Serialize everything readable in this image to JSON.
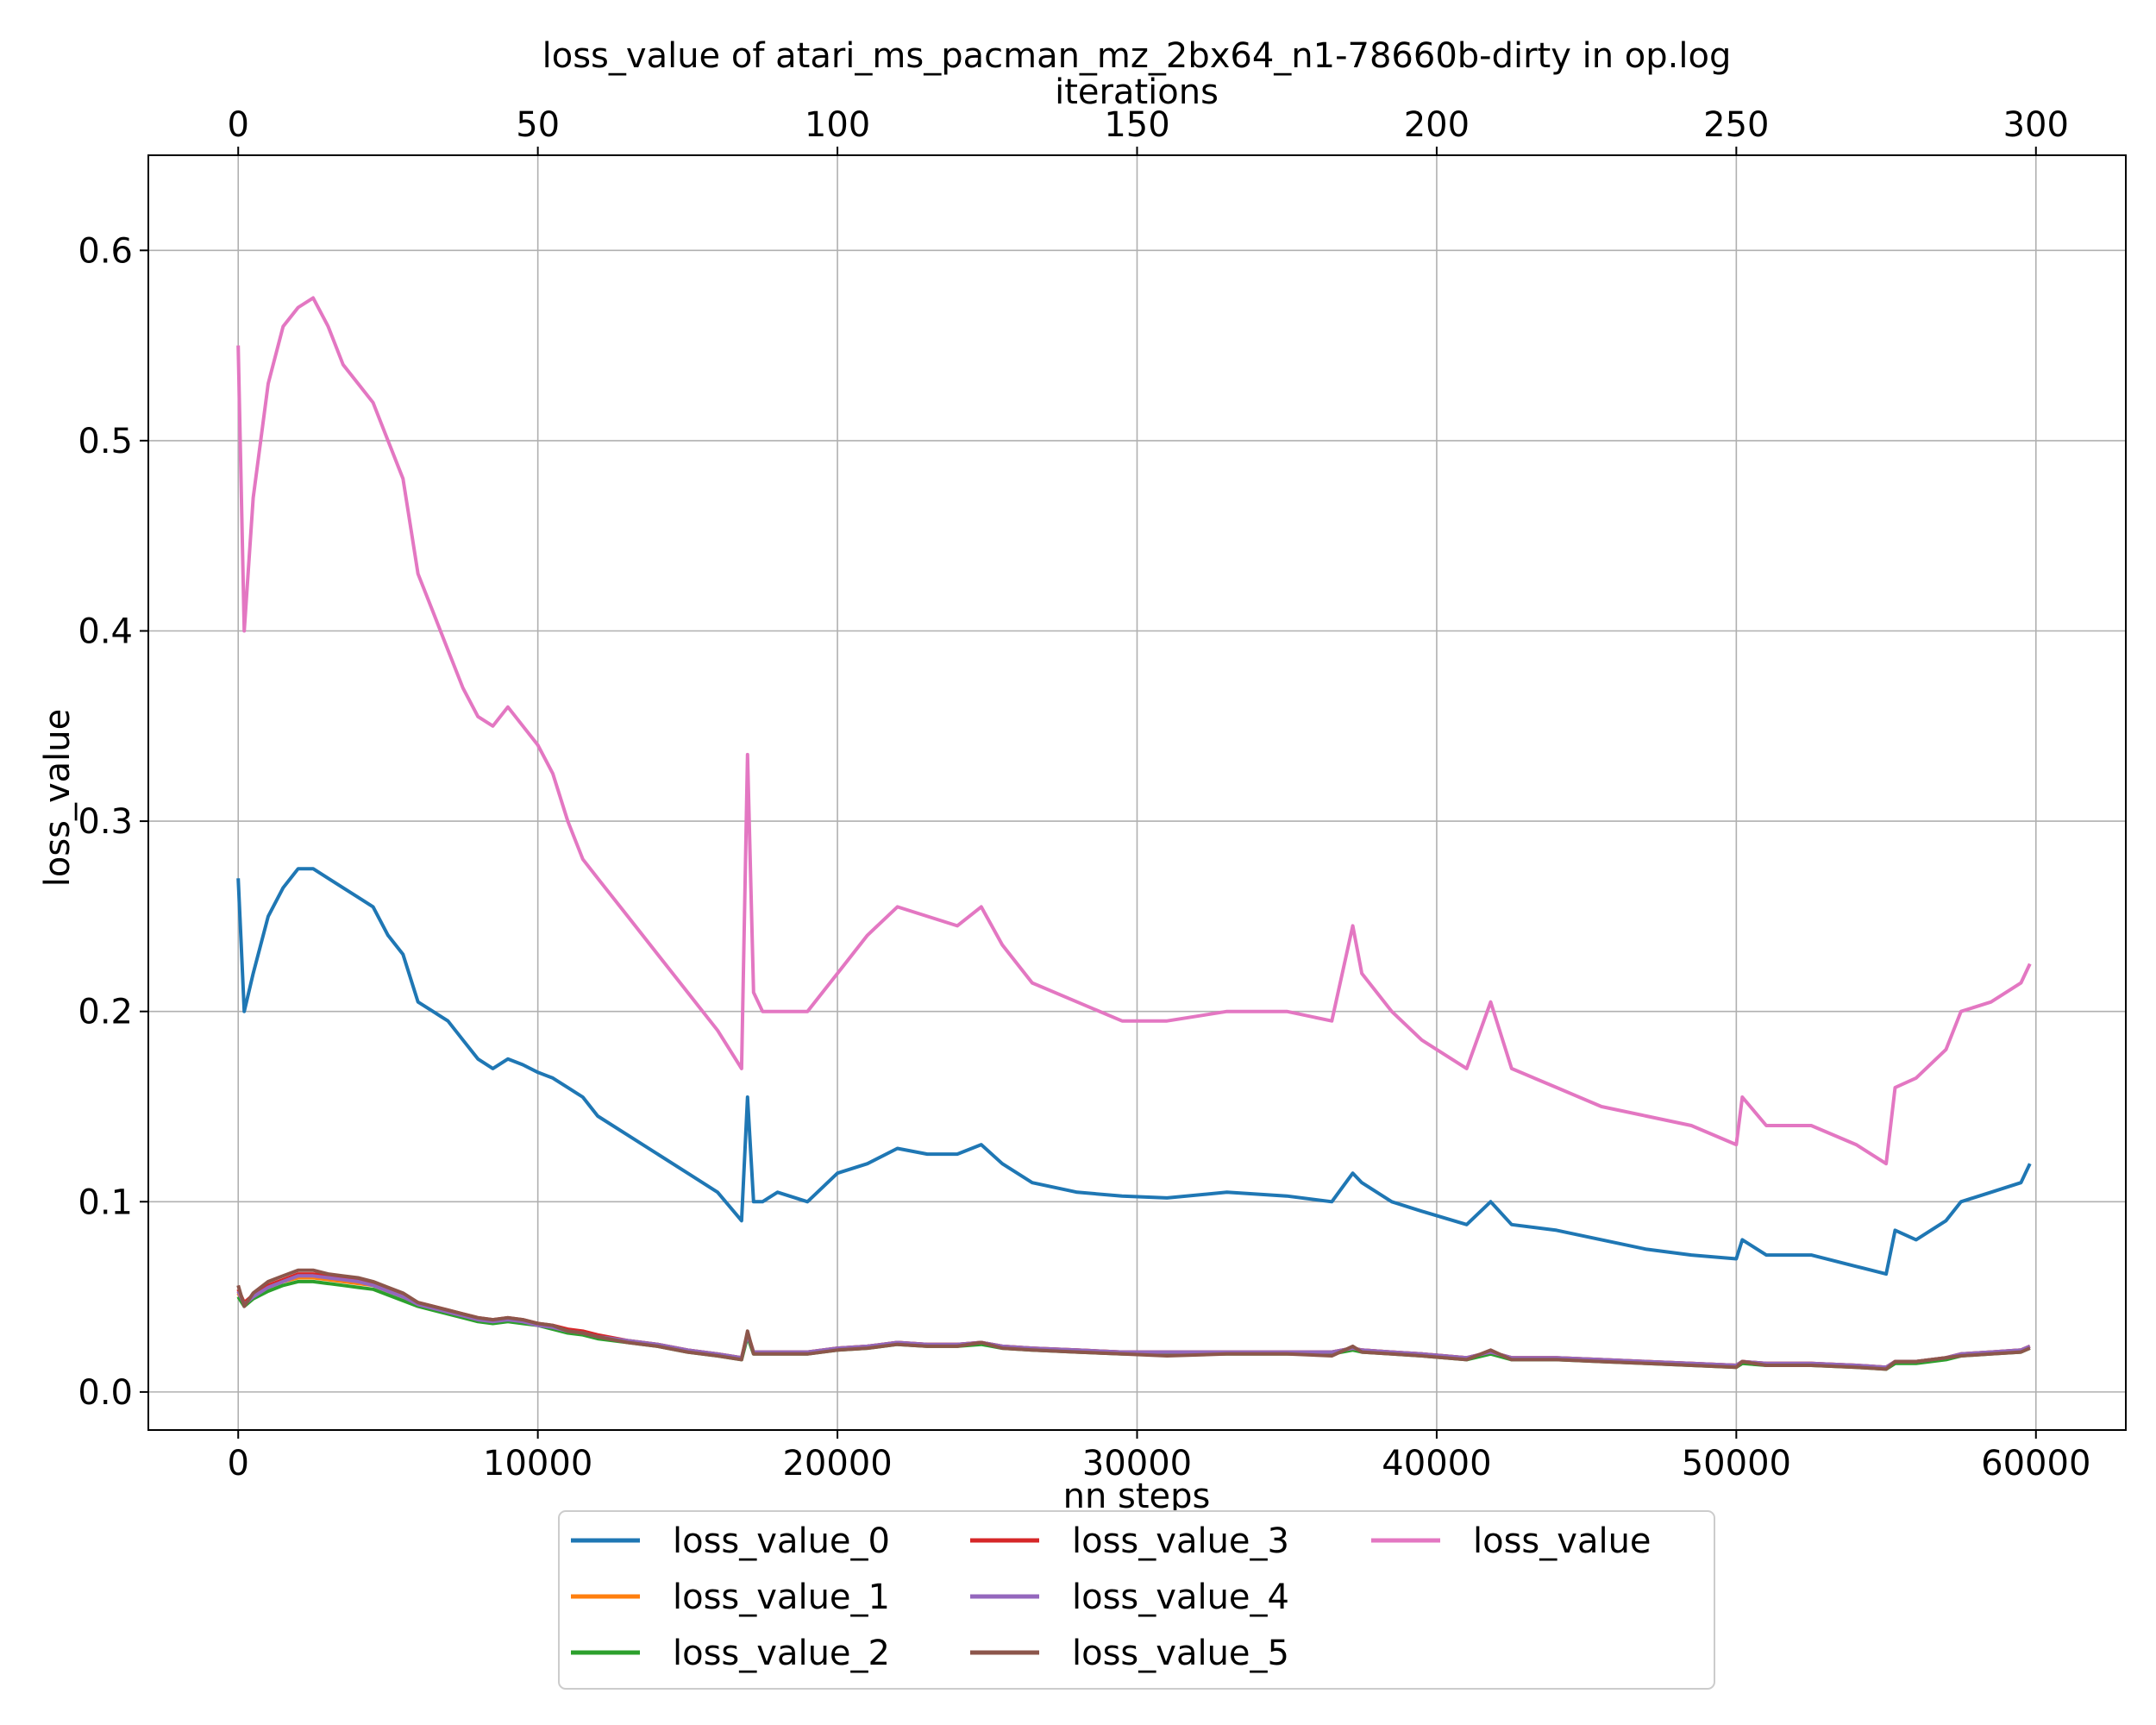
{
  "chart_data": {
    "type": "line",
    "title": "loss_value of atari_ms_pacman_mz_2bx64_n1-78660b-dirty in op.log",
    "xlabel": "nn steps",
    "x2label": "iterations",
    "ylabel": "loss_value",
    "xlim": [
      -3000,
      63000
    ],
    "x2lim": [
      -15,
      315
    ],
    "ylim": [
      -0.02,
      0.65
    ],
    "xticks": [
      0,
      10000,
      20000,
      30000,
      40000,
      50000,
      60000
    ],
    "x2ticks": [
      0,
      50,
      100,
      150,
      200,
      250,
      300
    ],
    "yticks": [
      0.0,
      0.1,
      0.2,
      0.3,
      0.4,
      0.5,
      0.6
    ],
    "grid": true,
    "legend_position": "below",
    "x": [
      0,
      200,
      500,
      1000,
      1500,
      2000,
      2500,
      3000,
      3500,
      4000,
      4500,
      5000,
      5500,
      6000,
      6500,
      7000,
      7500,
      8000,
      8500,
      9000,
      9500,
      10000,
      10500,
      11000,
      11500,
      12000,
      13000,
      14000,
      15000,
      16000,
      16800,
      17000,
      17200,
      17500,
      18000,
      19000,
      20000,
      21000,
      22000,
      23000,
      24000,
      24800,
      25500,
      26500,
      28000,
      29500,
      31000,
      33000,
      35000,
      36500,
      37200,
      37500,
      38500,
      39500,
      41000,
      41800,
      42500,
      44000,
      45500,
      47000,
      48500,
      50000,
      50200,
      51000,
      52500,
      54000,
      55000,
      55300,
      56000,
      57000,
      57500,
      58500,
      59500,
      59800
    ],
    "series": [
      {
        "name": "loss_value_0",
        "color": "#1f77b4",
        "values": [
          0.27,
          0.2,
          0.22,
          0.25,
          0.265,
          0.275,
          0.275,
          0.27,
          0.265,
          0.26,
          0.255,
          0.24,
          0.23,
          0.205,
          0.2,
          0.195,
          0.185,
          0.175,
          0.17,
          0.175,
          0.172,
          0.168,
          0.165,
          0.16,
          0.155,
          0.145,
          0.135,
          0.125,
          0.115,
          0.105,
          0.09,
          0.155,
          0.1,
          0.1,
          0.105,
          0.1,
          0.115,
          0.12,
          0.128,
          0.125,
          0.125,
          0.13,
          0.12,
          0.11,
          0.105,
          0.103,
          0.102,
          0.105,
          0.103,
          0.1,
          0.115,
          0.11,
          0.1,
          0.095,
          0.088,
          0.1,
          0.088,
          0.085,
          0.08,
          0.075,
          0.072,
          0.07,
          0.08,
          0.072,
          0.072,
          0.066,
          0.062,
          0.085,
          0.08,
          0.09,
          0.1,
          0.105,
          0.11,
          0.12
        ]
      },
      {
        "name": "loss_value_1",
        "color": "#ff7f0e",
        "values": [
          0.052,
          0.046,
          0.05,
          0.055,
          0.058,
          0.06,
          0.06,
          0.059,
          0.058,
          0.057,
          0.056,
          0.053,
          0.05,
          0.046,
          0.044,
          0.042,
          0.04,
          0.038,
          0.037,
          0.038,
          0.037,
          0.036,
          0.034,
          0.032,
          0.031,
          0.029,
          0.027,
          0.025,
          0.022,
          0.02,
          0.018,
          0.03,
          0.021,
          0.021,
          0.021,
          0.021,
          0.023,
          0.024,
          0.026,
          0.025,
          0.025,
          0.026,
          0.024,
          0.023,
          0.022,
          0.021,
          0.021,
          0.021,
          0.021,
          0.021,
          0.023,
          0.022,
          0.021,
          0.02,
          0.018,
          0.021,
          0.018,
          0.018,
          0.017,
          0.016,
          0.015,
          0.014,
          0.016,
          0.015,
          0.015,
          0.014,
          0.013,
          0.016,
          0.016,
          0.018,
          0.02,
          0.021,
          0.022,
          0.024
        ]
      },
      {
        "name": "loss_value_2",
        "color": "#2ca02c",
        "values": [
          0.05,
          0.045,
          0.049,
          0.053,
          0.056,
          0.058,
          0.058,
          0.057,
          0.056,
          0.055,
          0.054,
          0.051,
          0.048,
          0.045,
          0.043,
          0.041,
          0.039,
          0.037,
          0.036,
          0.037,
          0.036,
          0.035,
          0.033,
          0.031,
          0.03,
          0.028,
          0.026,
          0.024,
          0.021,
          0.019,
          0.017,
          0.029,
          0.02,
          0.02,
          0.02,
          0.02,
          0.022,
          0.023,
          0.025,
          0.024,
          0.024,
          0.025,
          0.023,
          0.022,
          0.021,
          0.02,
          0.02,
          0.02,
          0.02,
          0.02,
          0.022,
          0.021,
          0.02,
          0.019,
          0.017,
          0.02,
          0.017,
          0.017,
          0.016,
          0.015,
          0.014,
          0.013,
          0.015,
          0.014,
          0.014,
          0.013,
          0.012,
          0.015,
          0.015,
          0.017,
          0.019,
          0.02,
          0.021,
          0.023
        ]
      },
      {
        "name": "loss_value_3",
        "color": "#d62728",
        "values": [
          0.054,
          0.047,
          0.051,
          0.056,
          0.059,
          0.062,
          0.062,
          0.061,
          0.06,
          0.059,
          0.057,
          0.054,
          0.051,
          0.047,
          0.045,
          0.043,
          0.041,
          0.039,
          0.038,
          0.039,
          0.038,
          0.036,
          0.035,
          0.033,
          0.032,
          0.03,
          0.027,
          0.025,
          0.022,
          0.02,
          0.018,
          0.031,
          0.021,
          0.021,
          0.021,
          0.021,
          0.023,
          0.024,
          0.026,
          0.025,
          0.025,
          0.026,
          0.024,
          0.023,
          0.022,
          0.021,
          0.021,
          0.021,
          0.021,
          0.021,
          0.023,
          0.022,
          0.021,
          0.02,
          0.018,
          0.021,
          0.018,
          0.018,
          0.017,
          0.016,
          0.015,
          0.014,
          0.016,
          0.015,
          0.015,
          0.014,
          0.013,
          0.016,
          0.016,
          0.018,
          0.02,
          0.021,
          0.022,
          0.024
        ]
      },
      {
        "name": "loss_value_4",
        "color": "#9467bd",
        "values": [
          0.053,
          0.046,
          0.05,
          0.055,
          0.058,
          0.061,
          0.061,
          0.06,
          0.059,
          0.058,
          0.056,
          0.053,
          0.05,
          0.046,
          0.044,
          0.042,
          0.04,
          0.038,
          0.037,
          0.038,
          0.037,
          0.035,
          0.034,
          0.032,
          0.031,
          0.029,
          0.027,
          0.025,
          0.022,
          0.02,
          0.018,
          0.03,
          0.021,
          0.021,
          0.021,
          0.021,
          0.023,
          0.024,
          0.026,
          0.025,
          0.025,
          0.026,
          0.024,
          0.023,
          0.022,
          0.021,
          0.021,
          0.021,
          0.021,
          0.021,
          0.023,
          0.022,
          0.021,
          0.02,
          0.018,
          0.021,
          0.018,
          0.018,
          0.017,
          0.016,
          0.015,
          0.014,
          0.016,
          0.015,
          0.015,
          0.014,
          0.013,
          0.016,
          0.016,
          0.018,
          0.02,
          0.021,
          0.022,
          0.024
        ]
      },
      {
        "name": "loss_value_5",
        "color": "#8c564b",
        "values": [
          0.056,
          0.045,
          0.052,
          0.058,
          0.061,
          0.064,
          0.064,
          0.062,
          0.061,
          0.06,
          0.058,
          0.055,
          0.052,
          0.047,
          0.045,
          0.043,
          0.041,
          0.039,
          0.038,
          0.039,
          0.038,
          0.036,
          0.035,
          0.032,
          0.031,
          0.029,
          0.026,
          0.024,
          0.021,
          0.019,
          0.017,
          0.032,
          0.02,
          0.02,
          0.02,
          0.02,
          0.022,
          0.023,
          0.025,
          0.024,
          0.024,
          0.026,
          0.023,
          0.022,
          0.021,
          0.02,
          0.019,
          0.02,
          0.02,
          0.019,
          0.024,
          0.021,
          0.02,
          0.019,
          0.017,
          0.022,
          0.017,
          0.017,
          0.016,
          0.015,
          0.014,
          0.013,
          0.016,
          0.014,
          0.014,
          0.013,
          0.012,
          0.016,
          0.016,
          0.018,
          0.019,
          0.02,
          0.021,
          0.023
        ]
      },
      {
        "name": "loss_value",
        "color": "#e377c2",
        "values": [
          0.55,
          0.4,
          0.47,
          0.53,
          0.56,
          0.57,
          0.575,
          0.56,
          0.54,
          0.53,
          0.52,
          0.5,
          0.48,
          0.43,
          0.41,
          0.39,
          0.37,
          0.355,
          0.35,
          0.36,
          0.35,
          0.34,
          0.325,
          0.3,
          0.28,
          0.27,
          0.25,
          0.23,
          0.21,
          0.19,
          0.17,
          0.335,
          0.21,
          0.2,
          0.2,
          0.2,
          0.22,
          0.24,
          0.255,
          0.25,
          0.245,
          0.255,
          0.235,
          0.215,
          0.205,
          0.195,
          0.195,
          0.2,
          0.2,
          0.195,
          0.245,
          0.22,
          0.2,
          0.185,
          0.17,
          0.205,
          0.17,
          0.16,
          0.15,
          0.145,
          0.14,
          0.13,
          0.155,
          0.14,
          0.14,
          0.13,
          0.12,
          0.16,
          0.165,
          0.18,
          0.2,
          0.205,
          0.215,
          0.225
        ]
      }
    ]
  }
}
